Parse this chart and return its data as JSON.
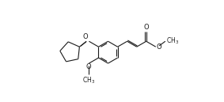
{
  "background_color": "#ffffff",
  "line_color": "#1a1a1a",
  "line_width": 0.8,
  "font_size": 6.0,
  "fig_width": 2.83,
  "fig_height": 1.29,
  "dpi": 100,
  "xlim": [
    0.0,
    8.5
  ],
  "ylim": [
    0.5,
    3.8
  ]
}
